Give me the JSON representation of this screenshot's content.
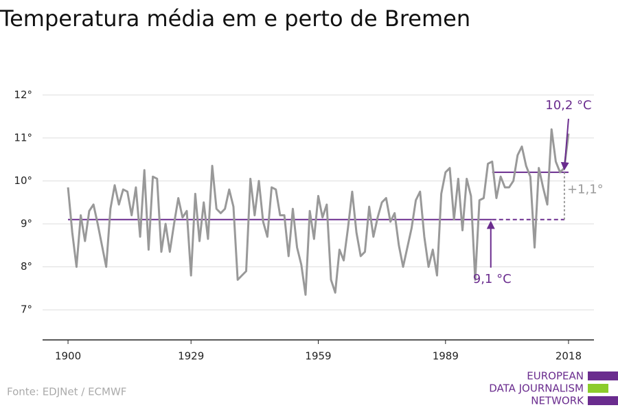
{
  "chart_data": {
    "type": "line",
    "title": "Temperatura média em e perto de Bremen",
    "x": [
      1900,
      1901,
      1902,
      1903,
      1904,
      1905,
      1906,
      1907,
      1908,
      1909,
      1910,
      1911,
      1912,
      1913,
      1914,
      1915,
      1916,
      1917,
      1918,
      1919,
      1920,
      1921,
      1922,
      1923,
      1924,
      1925,
      1926,
      1927,
      1928,
      1929,
      1930,
      1931,
      1932,
      1933,
      1934,
      1935,
      1936,
      1937,
      1938,
      1939,
      1940,
      1941,
      1942,
      1943,
      1944,
      1945,
      1946,
      1947,
      1948,
      1949,
      1950,
      1951,
      1952,
      1953,
      1954,
      1955,
      1956,
      1957,
      1958,
      1959,
      1960,
      1961,
      1962,
      1963,
      1964,
      1965,
      1966,
      1967,
      1968,
      1969,
      1970,
      1971,
      1972,
      1973,
      1974,
      1975,
      1976,
      1977,
      1978,
      1979,
      1980,
      1981,
      1982,
      1983,
      1984,
      1985,
      1986,
      1987,
      1988,
      1989,
      1990,
      1991,
      1992,
      1993,
      1994,
      1995,
      1996,
      1997,
      1998,
      1999,
      2000,
      2001,
      2002,
      2003,
      2004,
      2005,
      2006,
      2007,
      2008,
      2009,
      2010,
      2011,
      2012,
      2013,
      2014,
      2015,
      2016,
      2017,
      2018
    ],
    "series": [
      {
        "color": "#999999",
        "values": [
          9.85,
          8.8,
          8.0,
          9.2,
          8.6,
          9.3,
          9.45,
          9.0,
          8.5,
          8.0,
          9.35,
          9.9,
          9.45,
          9.8,
          9.75,
          9.2,
          9.85,
          8.7,
          10.25,
          8.4,
          10.1,
          10.05,
          8.35,
          9.0,
          8.35,
          9.0,
          9.6,
          9.15,
          9.3,
          7.8,
          9.7,
          8.6,
          9.5,
          8.65,
          10.35,
          9.35,
          9.25,
          9.35,
          9.8,
          9.4,
          7.7,
          7.8,
          7.9,
          10.05,
          9.2,
          10.0,
          9.05,
          8.7,
          9.85,
          9.8,
          9.2,
          9.2,
          8.25,
          9.35,
          8.45,
          8.05,
          7.35,
          9.3,
          8.65,
          9.65,
          9.15,
          9.45,
          7.7,
          7.4,
          8.4,
          8.15,
          8.9,
          9.75,
          8.8,
          8.25,
          8.35,
          9.4,
          8.7,
          9.15,
          9.5,
          9.6,
          9.05,
          9.25,
          8.5,
          8.0,
          8.45,
          8.9,
          9.55,
          9.75,
          8.7,
          8.0,
          8.4,
          7.8,
          9.7,
          10.2,
          10.3,
          9.1,
          10.05,
          8.85,
          10.05,
          9.65,
          7.7,
          9.55,
          9.6,
          10.4,
          10.45,
          9.6,
          10.1,
          9.85,
          9.85,
          10.0,
          10.6,
          10.8,
          10.35,
          10.1,
          8.45,
          10.3,
          9.85,
          9.45,
          11.2,
          10.45,
          10.2,
          10.3,
          11.1
        ]
      }
    ],
    "reference_lines": [
      {
        "value": 9.1,
        "label": "9,1 °C",
        "from": 1900,
        "to": 2000,
        "color": "#6a2c8e"
      },
      {
        "value": 10.2,
        "label": "10,2 °C",
        "from": 2000,
        "to": 2018,
        "color": "#6a2c8e"
      }
    ],
    "difference": {
      "value": 1.1,
      "label": "+1,1°",
      "color": "#999999"
    },
    "xlim": [
      1894,
      2024
    ],
    "xticks": [
      1900,
      1929,
      1959,
      1989,
      2018
    ],
    "ylim": [
      6.3,
      12.5
    ],
    "yticks": [
      {
        "value": 7,
        "label": "7°"
      },
      {
        "value": 8,
        "label": "8°"
      },
      {
        "value": 9,
        "label": "9°"
      },
      {
        "value": 10,
        "label": "10°"
      },
      {
        "value": 11,
        "label": "11°"
      },
      {
        "value": 12,
        "label": "12°"
      }
    ],
    "grid": true
  },
  "source": "Fonte: EDJNet / ECMWF",
  "logo": [
    "EUROPEAN",
    "DATA JOURNALISM",
    "NETWORK"
  ]
}
